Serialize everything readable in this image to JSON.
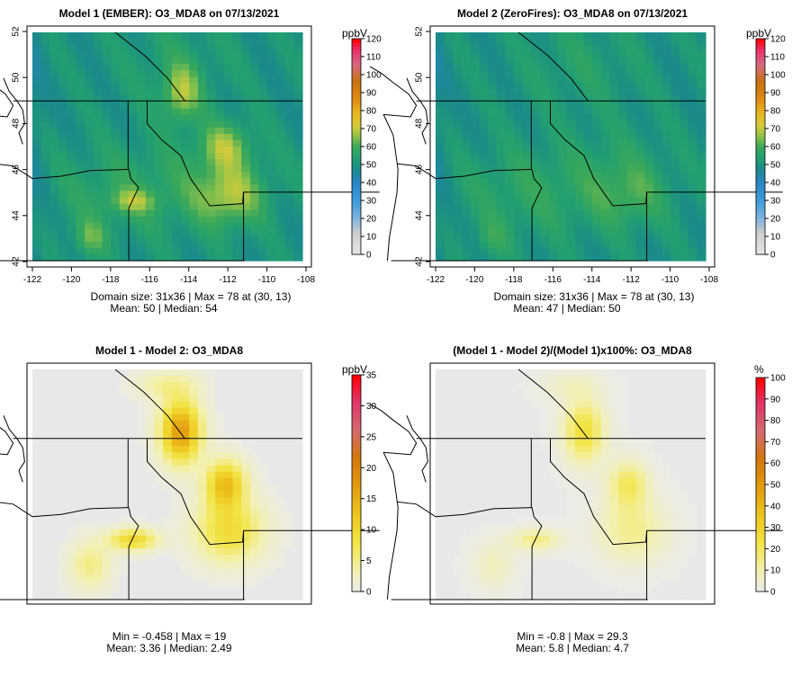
{
  "colors": {
    "water": "#e6e6e6",
    "border_line": "#000000"
  },
  "panels": [
    {
      "title": "Model 1 (EMBER): O3_MDA8 on 07/13/2021",
      "unit": "ppbV",
      "stats_line1": "Domain size: 31x36 | Max = 78 at (30, 13)",
      "stats_line2": "Mean: 50 |  Median: 54",
      "has_axes": true
    },
    {
      "title": "Model 2 (ZeroFires): O3_MDA8 on 07/13/2021",
      "unit": "ppbV",
      "stats_line1": "Domain size: 31x36 | Max = 78 at (30, 13)",
      "stats_line2": "Mean: 47 |  Median: 50",
      "has_axes": true
    },
    {
      "title": "Model 1 - Model 2: O3_MDA8",
      "unit": "ppbV",
      "stats_line1": "Min = -0.458 | Max = 19",
      "stats_line2": "Mean: 3.36 |  Median: 2.49",
      "has_axes": false
    },
    {
      "title": "(Model 1 - Model 2)/(Model 1)x100%: O3_MDA8",
      "unit": "%",
      "stats_line1": "Min = -0.8 | Max = 29.3",
      "stats_line2": "Mean: 5.8 |  Median: 4.7",
      "has_axes": false
    }
  ],
  "chart_data": [
    {
      "type": "heatmap",
      "title": "Model 1 (EMBER): O3_MDA8 on 07/13/2021",
      "legend_title": "ppbV",
      "x_ticks": [
        "-122",
        "-120",
        "-118",
        "-116",
        "-114",
        "-112",
        "-110",
        "-108"
      ],
      "y_ticks": [
        "42",
        "44",
        "46",
        "48",
        "50",
        "52"
      ],
      "colorbar_ticks": [
        0,
        10,
        20,
        30,
        40,
        50,
        60,
        70,
        80,
        90,
        100,
        110,
        120
      ],
      "colorbar_range": [
        0,
        120
      ],
      "grid_size": "31x36",
      "max": 78,
      "max_location": [
        30,
        13
      ],
      "mean": 50,
      "median": 54
    },
    {
      "type": "heatmap",
      "title": "Model 2 (ZeroFires): O3_MDA8 on 07/13/2021",
      "legend_title": "ppbV",
      "x_ticks": [
        "-122",
        "-120",
        "-118",
        "-116",
        "-114",
        "-112",
        "-110",
        "-108"
      ],
      "y_ticks": [
        "42",
        "44",
        "46",
        "48",
        "50",
        "52"
      ],
      "colorbar_ticks": [
        0,
        10,
        20,
        30,
        40,
        50,
        60,
        70,
        80,
        90,
        100,
        110,
        120
      ],
      "colorbar_range": [
        0,
        120
      ],
      "grid_size": "31x36",
      "max": 78,
      "max_location": [
        30,
        13
      ],
      "mean": 47,
      "median": 50
    },
    {
      "type": "heatmap",
      "title": "Model 1 - Model 2: O3_MDA8",
      "legend_title": "ppbV",
      "colorbar_ticks": [
        0,
        5,
        10,
        15,
        20,
        25,
        30,
        35
      ],
      "colorbar_range": [
        0,
        35
      ],
      "min": -0.458,
      "max": 19,
      "mean": 3.36,
      "median": 2.49
    },
    {
      "type": "heatmap",
      "title": "(Model 1 - Model 2)/(Model 1)x100%: O3_MDA8",
      "legend_title": "%",
      "colorbar_ticks": [
        0,
        10,
        20,
        30,
        40,
        50,
        60,
        70,
        80,
        90,
        100
      ],
      "colorbar_range": [
        0,
        100
      ],
      "min": -0.8,
      "max": 29.3,
      "mean": 5.8,
      "median": 4.7
    }
  ]
}
